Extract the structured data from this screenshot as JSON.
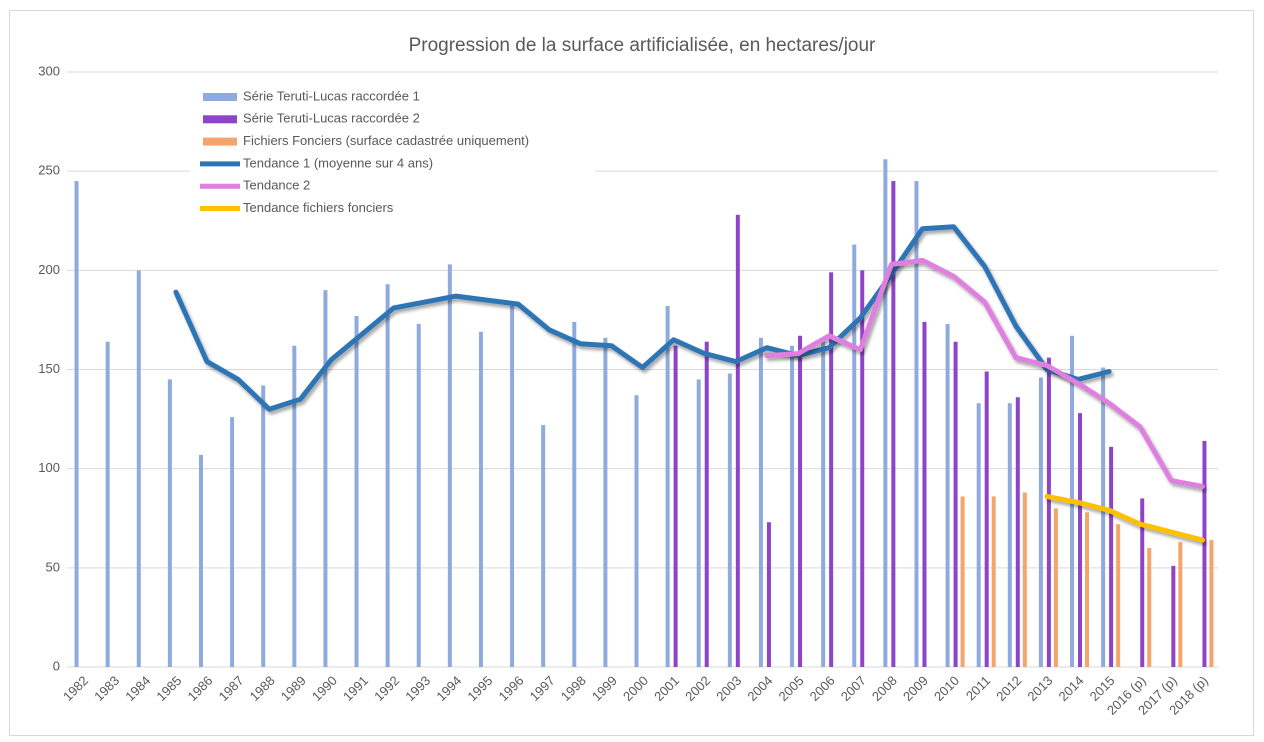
{
  "chart_data": {
    "type": "bar",
    "title": "Progression de la surface artificialisée, en hectares/jour",
    "categories": [
      "1982",
      "1983",
      "1984",
      "1985",
      "1986",
      "1987",
      "1988",
      "1989",
      "1990",
      "1991",
      "1992",
      "1993",
      "1994",
      "1995",
      "1996",
      "1997",
      "1998",
      "1999",
      "2000",
      "2001",
      "2002",
      "2003",
      "2004",
      "2005",
      "2006",
      "2007",
      "2008",
      "2009",
      "2010",
      "2011",
      "2012",
      "2013",
      "2014",
      "2015",
      "2016 (p)",
      "2017 (p)",
      "2018 (p)"
    ],
    "ylim": [
      0,
      300
    ],
    "yticks": [
      0,
      50,
      100,
      150,
      200,
      250,
      300
    ],
    "grid": true,
    "legend": "top-left",
    "series": [
      {
        "name": "Série Teruti-Lucas raccordée 1",
        "type": "bar",
        "color": "#8faadc",
        "values": [
          245,
          164,
          200,
          145,
          107,
          126,
          142,
          162,
          190,
          177,
          193,
          173,
          203,
          169,
          182,
          122,
          174,
          166,
          137,
          182,
          145,
          148,
          166,
          162,
          165,
          213,
          256,
          245,
          173,
          133,
          133,
          146,
          167,
          151,
          null,
          null,
          null
        ]
      },
      {
        "name": "Série Teruti-Lucas raccordée 2",
        "type": "bar",
        "color": "#8e44c8",
        "values": [
          null,
          null,
          null,
          null,
          null,
          null,
          null,
          null,
          null,
          null,
          null,
          null,
          null,
          null,
          null,
          null,
          null,
          null,
          null,
          162,
          164,
          228,
          73,
          167,
          199,
          200,
          245,
          174,
          164,
          149,
          136,
          156,
          128,
          111,
          85,
          51,
          114
        ]
      },
      {
        "name": "Fichiers Fonciers (surface cadastrée uniquement)",
        "type": "bar",
        "color": "#f4a56b",
        "values": [
          null,
          null,
          null,
          null,
          null,
          null,
          null,
          null,
          null,
          null,
          null,
          null,
          null,
          null,
          null,
          null,
          null,
          null,
          null,
          null,
          null,
          null,
          null,
          null,
          null,
          null,
          null,
          null,
          86,
          86,
          88,
          80,
          78,
          72,
          60,
          63,
          64
        ]
      },
      {
        "name": "Tendance 1 (moyenne sur 4 ans)",
        "type": "line",
        "color": "#2e75b6",
        "values": [
          null,
          null,
          null,
          189,
          154,
          145,
          130,
          135,
          155,
          168,
          181,
          184,
          187,
          185,
          183,
          170,
          163,
          162,
          151,
          165,
          158,
          154,
          161,
          157,
          161,
          176,
          198,
          221,
          222,
          202,
          172,
          150,
          145,
          149,
          null,
          null,
          null
        ]
      },
      {
        "name": "Tendance 2",
        "type": "line",
        "color": "#df7fdf",
        "values": [
          null,
          null,
          null,
          null,
          null,
          null,
          null,
          null,
          null,
          null,
          null,
          null,
          null,
          null,
          null,
          null,
          null,
          null,
          null,
          null,
          null,
          null,
          157,
          158,
          167,
          160,
          203,
          205,
          197,
          184,
          156,
          152,
          143,
          133,
          121,
          94,
          91
        ]
      },
      {
        "name": "Tendance fichiers fonciers",
        "type": "line",
        "color": "#ffc000",
        "values": [
          null,
          null,
          null,
          null,
          null,
          null,
          null,
          null,
          null,
          null,
          null,
          null,
          null,
          null,
          null,
          null,
          null,
          null,
          null,
          null,
          null,
          null,
          null,
          null,
          null,
          null,
          null,
          null,
          null,
          null,
          null,
          86,
          83,
          79,
          72,
          68,
          64
        ]
      }
    ]
  }
}
